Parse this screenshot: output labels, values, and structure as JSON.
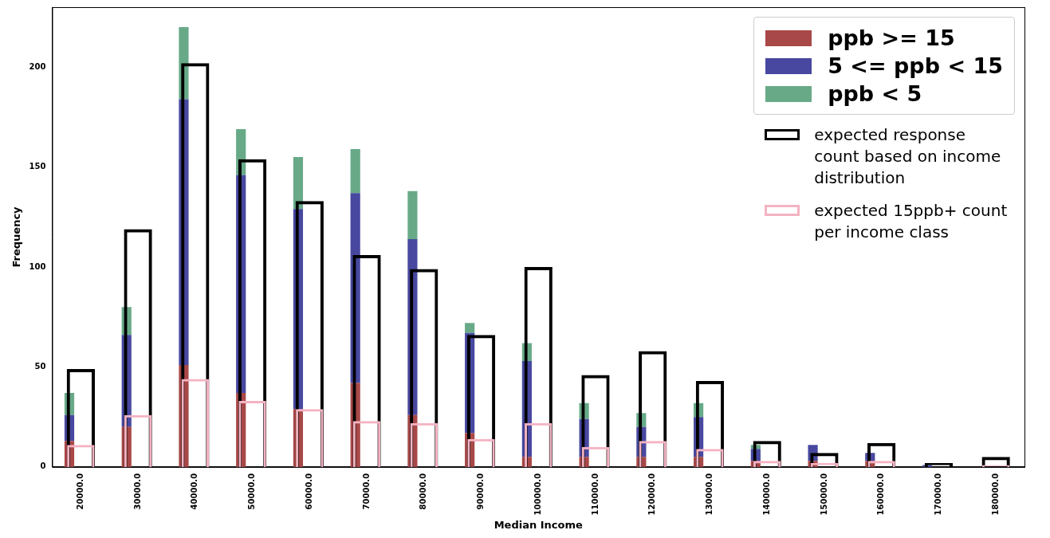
{
  "chart_data": {
    "type": "bar",
    "x_label": "Median Income",
    "y_label": "Frequency",
    "categories": [
      "20000.0",
      "30000.0",
      "40000.0",
      "50000.0",
      "60000.0",
      "70000.0",
      "80000.0",
      "90000.0",
      "100000.0",
      "110000.0",
      "120000.0",
      "130000.0",
      "140000.0",
      "150000.0",
      "160000.0",
      "170000.0",
      "180000.0"
    ],
    "stacked": true,
    "grid": false,
    "legend": "upper right",
    "ylim": [
      0,
      230
    ],
    "yticks": [
      0,
      50,
      100,
      150,
      200
    ],
    "series": [
      {
        "name": "ppb >= 15",
        "type": "bar",
        "color": "#a84848",
        "values": [
          13,
          20,
          51,
          37,
          29,
          42,
          26,
          17,
          5,
          5,
          5,
          5,
          3,
          3,
          3,
          0,
          0
        ]
      },
      {
        "name": "5 <= ppb < 15",
        "type": "bar",
        "color": "#4848a0",
        "values": [
          13,
          46,
          133,
          109,
          100,
          95,
          88,
          50,
          48,
          19,
          15,
          20,
          6,
          8,
          4,
          1,
          0
        ]
      },
      {
        "name": "ppb < 5",
        "type": "bar",
        "color": "#68aa88",
        "values": [
          11,
          14,
          36,
          23,
          26,
          22,
          24,
          5,
          9,
          8,
          7,
          7,
          2,
          0,
          0,
          0,
          0
        ]
      },
      {
        "name": "expected response count based on income distribution",
        "type": "outline",
        "color": "#000000",
        "values": [
          49,
          119,
          202,
          154,
          133,
          106,
          99,
          66,
          100,
          46,
          58,
          43,
          13,
          7,
          12,
          2,
          5
        ]
      },
      {
        "name": "expected 15ppb+ count per income class",
        "type": "outline",
        "color": "#f4b3c2",
        "values": [
          11,
          26,
          44,
          33,
          29,
          23,
          22,
          14,
          22,
          10,
          13,
          9,
          3,
          2,
          3,
          0,
          1
        ]
      }
    ]
  }
}
